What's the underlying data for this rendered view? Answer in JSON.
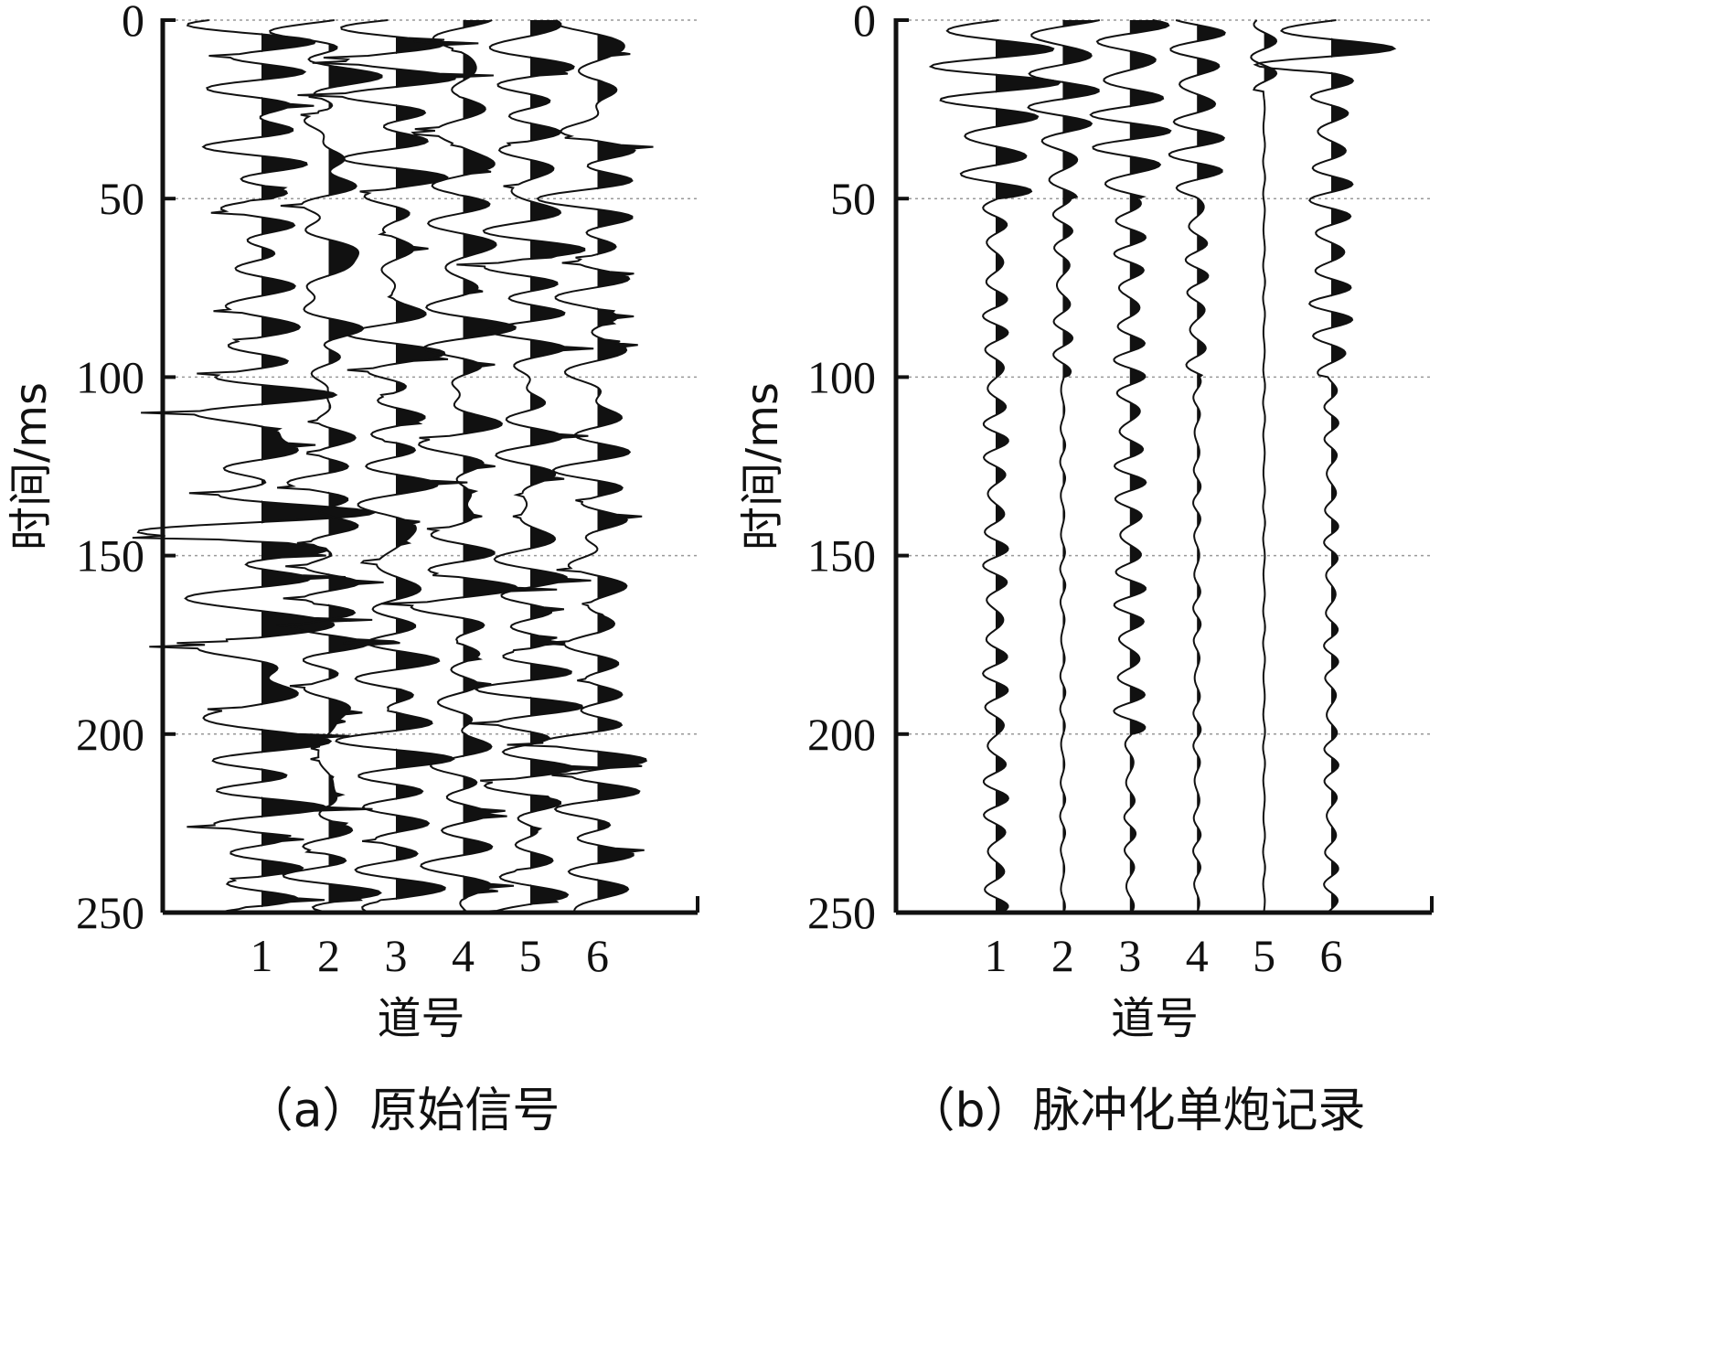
{
  "chart_data": [
    {
      "type": "seismic-wiggle",
      "caption": "（a）原始信号",
      "xlabel": "道号",
      "ylabel": "时间/ms",
      "ylim": [
        0,
        250
      ],
      "y_ticks": [
        "0",
        "50",
        "100",
        "150",
        "200",
        "250"
      ],
      "y_inverted": true,
      "x_ticks": [
        "1",
        "2",
        "3",
        "4",
        "5",
        "6"
      ],
      "grid": "horizontal dotted at y ticks",
      "fill": "positive lobes filled black",
      "traces": [
        {
          "trace": 1,
          "amplitude": 0.9,
          "character": "dense noise, many strong spikes across 0-250 ms"
        },
        {
          "trace": 2,
          "amplitude": 0.6,
          "character": "dense noise across 0-250 ms"
        },
        {
          "trace": 3,
          "amplitude": 0.6,
          "character": "dense noise across 0-250 ms"
        },
        {
          "trace": 4,
          "amplitude": 0.6,
          "character": "dense noise across 0-250 ms"
        },
        {
          "trace": 5,
          "amplitude": 0.6,
          "character": "dense noise across 0-250 ms"
        },
        {
          "trace": 6,
          "amplitude": 0.9,
          "character": "dense noise, strong positive spikes across 0-250 ms"
        }
      ]
    },
    {
      "type": "seismic-wiggle",
      "caption": "（b）脉冲化单炮记录",
      "xlabel": "道号",
      "ylabel": "时间/ms",
      "ylim": [
        0,
        250
      ],
      "y_ticks": [
        "0",
        "50",
        "100",
        "150",
        "200",
        "250"
      ],
      "y_inverted": true,
      "x_ticks": [
        "1",
        "2",
        "3",
        "4",
        "5",
        "6"
      ],
      "grid": "horizontal dotted at y ticks",
      "fill": "positive lobes filled black",
      "traces": [
        {
          "trace": 1,
          "amplitude": 1.0,
          "character": "large wavelets 0-50 ms, small ringing to 250 ms"
        },
        {
          "trace": 2,
          "amplitude": 0.9,
          "character": "large wavelets 0-50 ms, small wavelets to 100 ms, near-flat after"
        },
        {
          "trace": 3,
          "amplitude": 0.8,
          "character": "strong wavelets 0-50 ms, medium wavelets 50-200 ms"
        },
        {
          "trace": 4,
          "amplitude": 0.7,
          "character": "wavelets 0-50 ms, medium to 100 ms, weak after"
        },
        {
          "trace": 5,
          "amplitude": 0.4,
          "character": "small wavelets near 0-20 ms, near-flat after"
        },
        {
          "trace": 6,
          "amplitude": 1.0,
          "character": "big spike near 8 ms, wavelets to 100 ms, small after"
        }
      ]
    }
  ]
}
